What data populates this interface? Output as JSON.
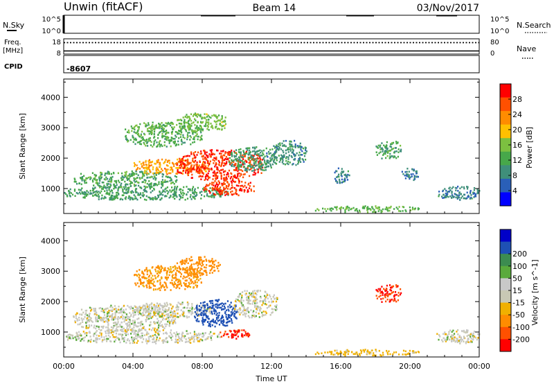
{
  "header": {
    "station": "Unwin (fitACF)",
    "beam": "Beam 14",
    "date": "03/Nov/2017"
  },
  "status_panels": {
    "nsky_label": "N.Sky",
    "nsearch_label": "N.Search",
    "noise_ticks": [
      "10^5",
      "10^0"
    ],
    "freq_label": "Freq.",
    "freq_unit": "[MHz]",
    "freq_ticks": [
      "18",
      "8"
    ],
    "nave_label": "Nave",
    "nave_ticks": [
      "80",
      "0"
    ],
    "cpid_label": "CPID",
    "cpid_value": "-8607"
  },
  "colors": {
    "power": [
      "#0000ff",
      "#2a5fb8",
      "#3f8f7a",
      "#47a84a",
      "#7cc040",
      "#ffc000",
      "#ff8c00",
      "#ff5000",
      "#ff0000"
    ],
    "velocity": [
      "#ff0000",
      "#ff5000",
      "#ff8c00",
      "#f0b000",
      "#c8c8b4",
      "#c8c8c8",
      "#5aaa3c",
      "#3c8c50",
      "#1e50b4",
      "#0000c8"
    ]
  },
  "chart_data": [
    {
      "type": "heatmap",
      "name": "power",
      "xlabel": "Time UT",
      "ylabel": "Slant Range [km]",
      "xticks": [
        "00:00",
        "04:00",
        "08:00",
        "12:00",
        "16:00",
        "20:00",
        "00:00"
      ],
      "xlim_hours": [
        0,
        24
      ],
      "yticks": [
        1000,
        2000,
        3000,
        4000
      ],
      "ylim": [
        180,
        4600
      ],
      "colorbar_label": "Power [dB]",
      "colorbar_ticks": [
        4,
        8,
        12,
        16,
        20,
        24,
        28
      ],
      "colorbar_range": [
        0,
        32
      ],
      "regions": [
        {
          "t0": 0.0,
          "t1": 9.5,
          "r0": 650,
          "r1": 1100,
          "val": 11
        },
        {
          "t0": 0.5,
          "t1": 6.5,
          "r0": 1050,
          "r1": 1600,
          "val": 12
        },
        {
          "t0": 4.0,
          "t1": 8.5,
          "r0": 1500,
          "r1": 2000,
          "val": 22
        },
        {
          "t0": 6.5,
          "t1": 11.5,
          "r0": 1300,
          "r1": 2300,
          "val": 28
        },
        {
          "t0": 8.0,
          "t1": 11.0,
          "r0": 800,
          "r1": 1300,
          "val": 28
        },
        {
          "t0": 9.5,
          "t1": 12.3,
          "r0": 1600,
          "r1": 2400,
          "val": 10
        },
        {
          "t0": 3.5,
          "t1": 8.0,
          "r0": 2400,
          "r1": 3200,
          "val": 13
        },
        {
          "t0": 6.5,
          "t1": 9.5,
          "r0": 2900,
          "r1": 3500,
          "val": 15
        },
        {
          "t0": 12.0,
          "t1": 14.0,
          "r0": 1800,
          "r1": 2600,
          "val": 9
        },
        {
          "t0": 15.5,
          "t1": 16.5,
          "r0": 1200,
          "r1": 1700,
          "val": 8
        },
        {
          "t0": 18.0,
          "t1": 19.5,
          "r0": 2000,
          "r1": 2600,
          "val": 12
        },
        {
          "t0": 19.5,
          "t1": 20.5,
          "r0": 1300,
          "r1": 1700,
          "val": 8
        },
        {
          "t0": 21.5,
          "t1": 24.0,
          "r0": 650,
          "r1": 1100,
          "val": 8
        },
        {
          "t0": 14.5,
          "t1": 20.5,
          "r0": 250,
          "r1": 450,
          "val": 14
        }
      ]
    },
    {
      "type": "heatmap",
      "name": "velocity",
      "xlabel": "Time UT",
      "ylabel": "Slant Range [km]",
      "xticks": [
        "00:00",
        "04:00",
        "08:00",
        "12:00",
        "16:00",
        "20:00",
        "00:00"
      ],
      "xlim_hours": [
        0,
        24
      ],
      "yticks": [
        1000,
        2000,
        3000,
        4000
      ],
      "ylim": [
        180,
        4600
      ],
      "colorbar_label": "Velocity [m s^-1]",
      "colorbar_ticks": [
        -200,
        -100,
        -50,
        -15,
        15,
        50,
        100,
        200
      ],
      "colorbar_range": [
        -250,
        250
      ],
      "regions": [
        {
          "t0": 0.0,
          "t1": 9.0,
          "r0": 650,
          "r1": 1100,
          "val": 0
        },
        {
          "t0": 0.5,
          "t1": 6.5,
          "r0": 1050,
          "r1": 1900,
          "val": 0
        },
        {
          "t0": 4.0,
          "t1": 8.5,
          "r0": 1500,
          "r1": 2000,
          "val": 0
        },
        {
          "t0": 7.5,
          "t1": 10.0,
          "r0": 1200,
          "r1": 2100,
          "val": 150
        },
        {
          "t0": 9.0,
          "t1": 10.8,
          "r0": 800,
          "r1": 1100,
          "val": -200
        },
        {
          "t0": 9.8,
          "t1": 12.3,
          "r0": 1500,
          "r1": 2400,
          "val": 0
        },
        {
          "t0": 4.0,
          "t1": 8.0,
          "r0": 2400,
          "r1": 3200,
          "val": -60
        },
        {
          "t0": 6.5,
          "t1": 9.0,
          "r0": 2900,
          "r1": 3500,
          "val": -80
        },
        {
          "t0": 18.0,
          "t1": 19.5,
          "r0": 2000,
          "r1": 2600,
          "val": -200
        },
        {
          "t0": 21.5,
          "t1": 24.0,
          "r0": 650,
          "r1": 1100,
          "val": 0
        },
        {
          "t0": 14.5,
          "t1": 20.5,
          "r0": 250,
          "r1": 450,
          "val": -30
        }
      ]
    }
  ]
}
